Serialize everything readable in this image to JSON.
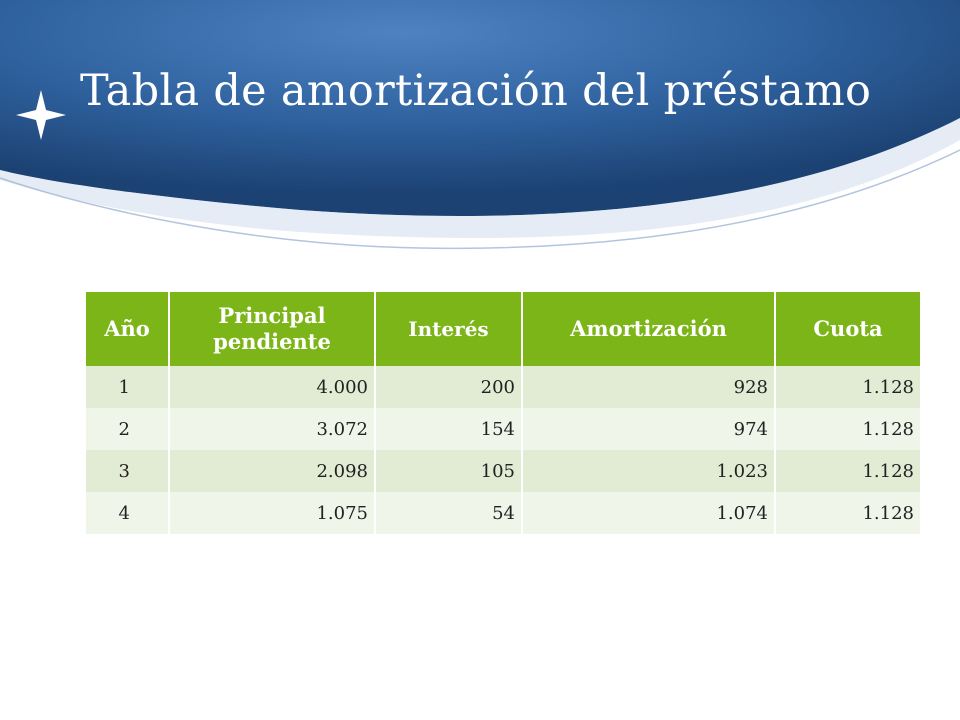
{
  "slide": {
    "title": "Tabla de amortización del préstamo",
    "colors": {
      "banner": "#2d5e9c",
      "header": "#7cb518",
      "row_odd": "#e2ebd4",
      "row_even": "#f0f5ea"
    },
    "decor_icon": "four-point-star-icon"
  },
  "table": {
    "headers": [
      "Año",
      "Principal pendiente",
      "Interés",
      "Amortización",
      "Cuota"
    ],
    "rows": [
      [
        "1",
        "4.000",
        "200",
        "928",
        "1.128"
      ],
      [
        "2",
        "3.072",
        "154",
        "974",
        "1.128"
      ],
      [
        "3",
        "2.098",
        "105",
        "1.023",
        "1.128"
      ],
      [
        "4",
        "1.075",
        "54",
        "1.074",
        "1.128"
      ]
    ]
  }
}
